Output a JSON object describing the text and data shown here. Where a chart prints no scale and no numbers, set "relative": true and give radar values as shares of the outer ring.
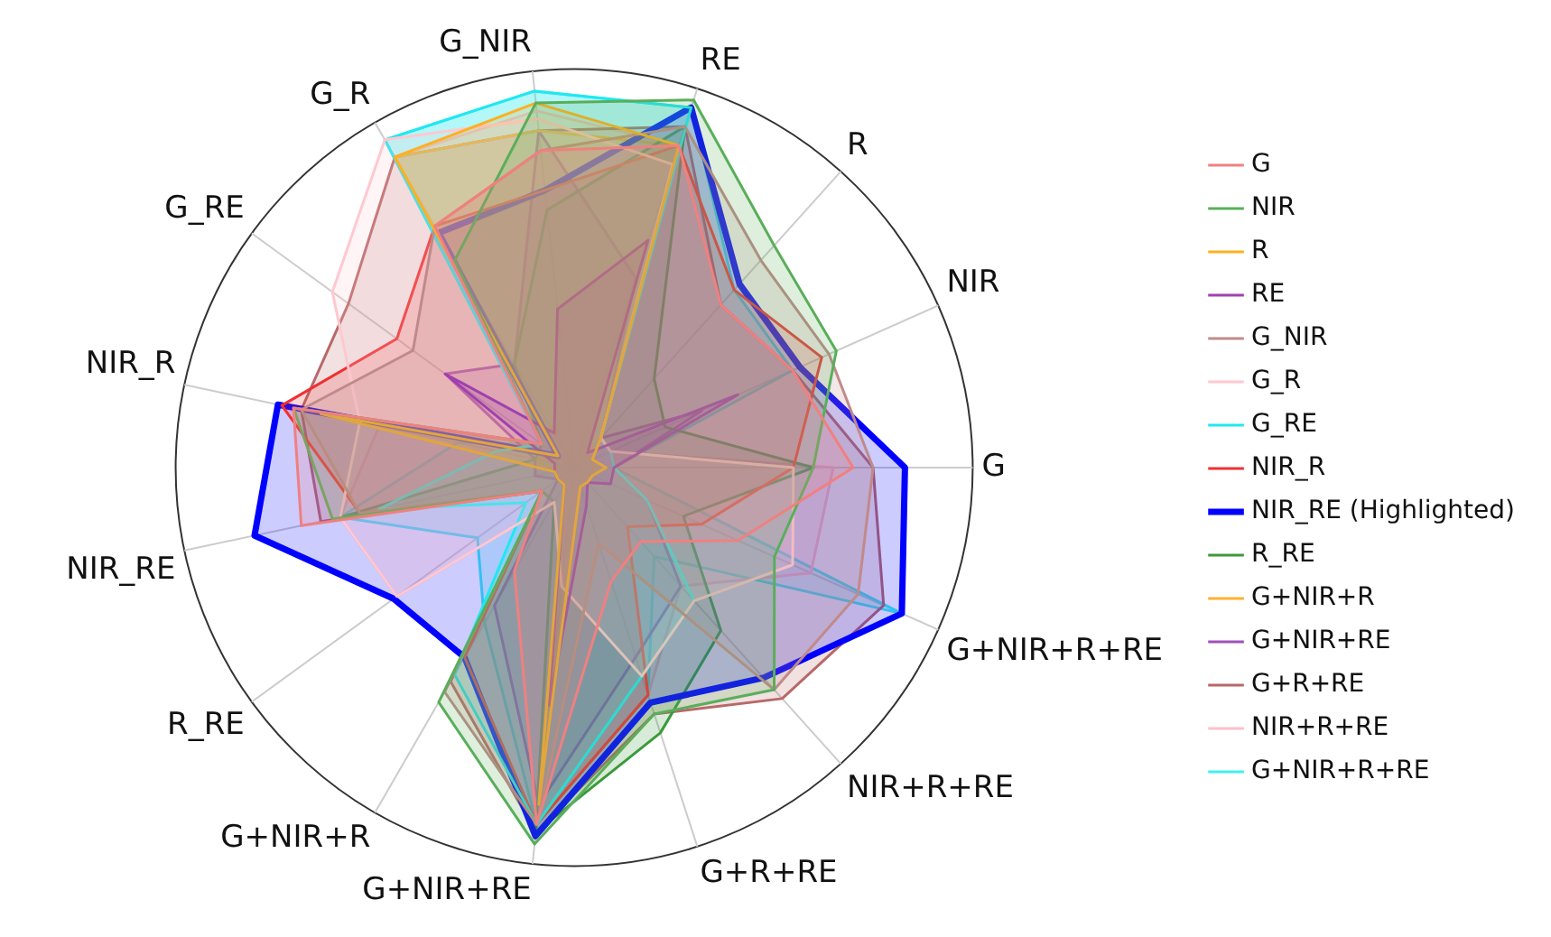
{
  "chart_data": {
    "type": "radar",
    "relative": true,
    "legend": "right",
    "marker": "none",
    "categories": [
      "RE",
      "R",
      "NIR",
      "G",
      "G+NIR+R+RE",
      "NIR+R+RE",
      "G+R+RE",
      "G+NIR+RE",
      "G+NIR+R",
      "R_RE",
      "NIR_RE",
      "NIR_R",
      "G_RE",
      "G_R",
      "G_NIR"
    ],
    "series": [
      {
        "name": "G",
        "color": "#f08080",
        "values": [
          0.85,
          0.55,
          0.6,
          0.7,
          0.45,
          0.25,
          0.3,
          0.9,
          0.3,
          0.1,
          0.7,
          0.72,
          0.1,
          0.7,
          0.8
        ]
      },
      {
        "name": "NIR",
        "color": "#5aae5a",
        "values": [
          0.97,
          0.75,
          0.72,
          0.6,
          0.55,
          0.75,
          0.65,
          0.95,
          0.68,
          0.1,
          0.62,
          0.72,
          0.1,
          0.6,
          0.92
        ]
      },
      {
        "name": "R",
        "color": "#ffb020",
        "values": [
          0.85,
          0.1,
          0.05,
          0.08,
          0.05,
          0.05,
          0.05,
          0.85,
          0.05,
          0.05,
          0.05,
          0.65,
          0.05,
          0.9,
          0.92
        ]
      },
      {
        "name": "RE",
        "color": "#a040b0",
        "values": [
          0.6,
          0.05,
          0.45,
          0.1,
          0.1,
          0.05,
          0.1,
          0.6,
          0.05,
          0.05,
          0.05,
          0.05,
          0.4,
          0.1,
          0.4
        ]
      },
      {
        "name": "G_NIR",
        "color": "#c08a8a",
        "values": [
          0.9,
          0.7,
          0.7,
          0.75,
          0.78,
          0.75,
          0.2,
          0.9,
          0.65,
          0.1,
          0.55,
          0.7,
          0.5,
          0.7,
          0.8
        ]
      },
      {
        "name": "G_R",
        "color": "#ffc8d0",
        "values": [
          0.8,
          0.1,
          0.1,
          0.55,
          0.6,
          0.45,
          0.55,
          0.3,
          0.1,
          0.55,
          0.6,
          0.55,
          0.75,
          0.95,
          0.88
        ]
      },
      {
        "name": "G_RE",
        "color": "#20e8f0",
        "values": [
          0.95,
          0.1,
          0.1,
          0.1,
          0.2,
          0.45,
          0.55,
          0.9,
          0.6,
          0.15,
          0.5,
          0.2,
          0.1,
          0.95,
          0.95
        ]
      },
      {
        "name": "NIR_R",
        "color": "#f03030",
        "values": [
          0.85,
          0.6,
          0.68,
          0.55,
          0.35,
          0.2,
          0.6,
          0.9,
          0.55,
          0.1,
          0.55,
          0.75,
          0.55,
          0.7,
          0.7
        ]
      },
      {
        "name": "NIR_RE (Highlighted)",
        "color": "#0000ff",
        "values": [
          0.95,
          0.62,
          0.62,
          0.83,
          0.9,
          0.71,
          0.62,
          0.93,
          0.55,
          0.56,
          0.82,
          0.76,
          0.05,
          0.68,
          0.7
        ]
      },
      {
        "name": "R_RE",
        "color": "#3a9a3a",
        "values": [
          0.9,
          0.3,
          0.25,
          0.6,
          0.3,
          0.55,
          0.7,
          0.92,
          0.1,
          0.1,
          0.6,
          0.1,
          0.1,
          0.3,
          0.65
        ]
      },
      {
        "name": "G+NIR+R",
        "color": "#ffb030",
        "values": [
          0.85,
          0.1,
          0.05,
          0.05,
          0.05,
          0.05,
          0.05,
          0.85,
          0.05,
          0.05,
          0.05,
          0.1,
          0.05,
          0.9,
          0.85
        ]
      },
      {
        "name": "G+NIR+RE",
        "color": "#a050b8",
        "values": [
          0.5,
          0.1,
          0.35,
          0.1,
          0.2,
          0.4,
          0.5,
          0.85,
          0.4,
          0.05,
          0.1,
          0.1,
          0.4,
          0.3,
          0.85
        ]
      },
      {
        "name": "G+R+RE",
        "color": "#b86868",
        "values": [
          0.9,
          0.55,
          0.6,
          0.75,
          0.85,
          0.78,
          0.65,
          0.92,
          0.62,
          0.1,
          0.65,
          0.7,
          0.7,
          0.9,
          0.85
        ]
      },
      {
        "name": "NIR+R+RE",
        "color": "#ffc0cb",
        "values": [
          0.85,
          0.1,
          0.1,
          0.65,
          0.65,
          0.4,
          0.6,
          0.9,
          0.1,
          0.55,
          0.6,
          0.5,
          0.1,
          0.9,
          0.9
        ]
      },
      {
        "name": "G+NIR+R+RE",
        "color": "#40f0f0",
        "values": [
          0.95,
          0.6,
          0.6,
          0.1,
          0.9,
          0.3,
          0.6,
          0.9,
          0.45,
          0.3,
          0.6,
          0.3,
          0.1,
          0.95,
          0.95
        ]
      }
    ]
  }
}
